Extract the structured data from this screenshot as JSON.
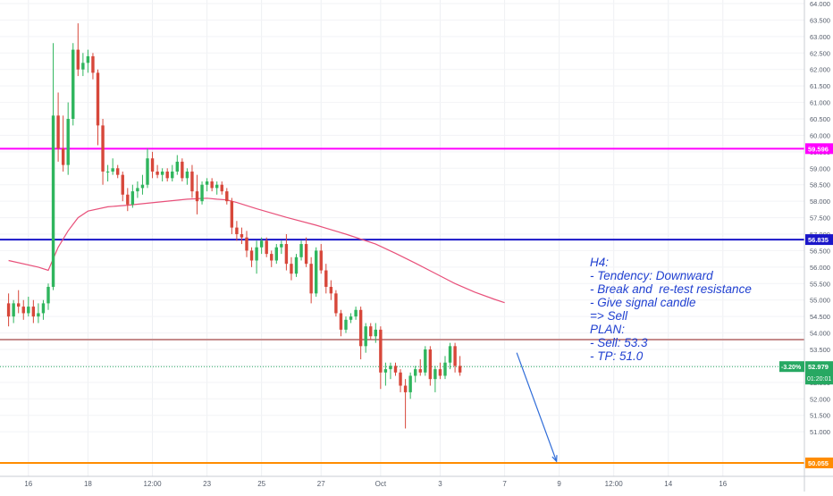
{
  "chart_data": {
    "type": "candlestick",
    "y_range": [
      50.0,
      64.0
    ],
    "y_tick_labels": [
      "51.000",
      "51.500",
      "52.000",
      "52.500",
      "53.000",
      "53.500",
      "54.000",
      "54.500",
      "55.000",
      "55.500",
      "56.000",
      "56.500",
      "57.000",
      "57.500",
      "58.000",
      "58.500",
      "59.000",
      "59.500",
      "60.000",
      "60.500",
      "61.000",
      "61.500",
      "62.000",
      "62.500",
      "63.000",
      "63.500",
      "64.000"
    ],
    "x_tick_labels": [
      {
        "label": "16",
        "index": 4
      },
      {
        "label": "18",
        "index": 16
      },
      {
        "label": "12:00",
        "index": 29
      },
      {
        "label": "23",
        "index": 40
      },
      {
        "label": "25",
        "index": 51
      },
      {
        "label": "27",
        "index": 63
      },
      {
        "label": "Oct",
        "index": 75
      },
      {
        "label": "3",
        "index": 87
      },
      {
        "label": "7",
        "index": 100
      },
      {
        "label": "9",
        "index": 111
      },
      {
        "label": "12:00",
        "index": 122
      },
      {
        "label": "14",
        "index": 133
      },
      {
        "label": "16",
        "index": 144
      }
    ],
    "candles": [
      [
        54.9,
        55.2,
        54.2,
        54.5
      ],
      [
        54.5,
        55.0,
        54.3,
        54.9
      ],
      [
        54.9,
        55.3,
        54.6,
        54.8
      ],
      [
        54.8,
        55.0,
        54.4,
        54.6
      ],
      [
        54.6,
        55.1,
        54.5,
        54.8
      ],
      [
        54.8,
        55.0,
        54.3,
        54.5
      ],
      [
        54.5,
        54.9,
        54.3,
        54.6
      ],
      [
        54.6,
        55.0,
        54.4,
        54.9
      ],
      [
        54.9,
        55.5,
        54.7,
        55.4
      ],
      [
        55.4,
        62.8,
        55.3,
        60.6
      ],
      [
        60.6,
        61.3,
        59.2,
        59.6
      ],
      [
        59.6,
        60.6,
        58.9,
        59.1
      ],
      [
        59.1,
        61.0,
        58.8,
        60.5
      ],
      [
        60.5,
        62.8,
        60.3,
        62.6
      ],
      [
        62.6,
        63.4,
        61.8,
        62.0
      ],
      [
        62.0,
        62.5,
        61.8,
        62.2
      ],
      [
        62.2,
        62.6,
        61.9,
        62.4
      ],
      [
        62.4,
        62.5,
        61.7,
        61.9
      ],
      [
        61.9,
        62.0,
        59.7,
        60.3
      ],
      [
        60.3,
        60.5,
        58.5,
        58.9
      ],
      [
        58.9,
        59.1,
        58.6,
        58.9
      ],
      [
        58.9,
        59.3,
        58.8,
        59.0
      ],
      [
        59.0,
        59.1,
        58.7,
        58.8
      ],
      [
        58.8,
        58.9,
        58.0,
        58.2
      ],
      [
        58.2,
        58.4,
        57.7,
        57.9
      ],
      [
        57.9,
        58.5,
        57.8,
        58.3
      ],
      [
        58.3,
        58.6,
        58.1,
        58.4
      ],
      [
        58.4,
        58.8,
        58.2,
        58.5
      ],
      [
        58.5,
        59.6,
        58.4,
        59.3
      ],
      [
        59.3,
        59.5,
        58.7,
        58.9
      ],
      [
        58.9,
        59.1,
        58.7,
        58.8
      ],
      [
        58.8,
        59.0,
        58.6,
        58.9
      ],
      [
        58.9,
        59.0,
        58.6,
        58.7
      ],
      [
        58.7,
        59.1,
        58.6,
        58.9
      ],
      [
        58.9,
        59.4,
        58.8,
        59.2
      ],
      [
        59.2,
        59.3,
        58.6,
        58.7
      ],
      [
        58.7,
        59.0,
        58.5,
        58.9
      ],
      [
        58.9,
        59.1,
        58.1,
        58.3
      ],
      [
        58.3,
        58.8,
        57.6,
        58.0
      ],
      [
        58.0,
        58.6,
        57.9,
        58.5
      ],
      [
        58.5,
        58.7,
        58.3,
        58.6
      ],
      [
        58.6,
        58.7,
        58.3,
        58.4
      ],
      [
        58.4,
        58.6,
        58.2,
        58.5
      ],
      [
        58.5,
        58.6,
        58.2,
        58.3
      ],
      [
        58.3,
        58.4,
        57.9,
        58.0
      ],
      [
        58.0,
        58.1,
        57.0,
        57.2
      ],
      [
        57.2,
        57.4,
        56.8,
        57.0
      ],
      [
        57.0,
        57.2,
        56.7,
        56.9
      ],
      [
        56.9,
        57.1,
        56.3,
        56.5
      ],
      [
        56.5,
        56.6,
        56.0,
        56.2
      ],
      [
        56.2,
        56.8,
        55.8,
        56.6
      ],
      [
        56.6,
        56.9,
        56.4,
        56.8
      ],
      [
        56.8,
        56.9,
        56.3,
        56.4
      ],
      [
        56.4,
        56.5,
        56.0,
        56.2
      ],
      [
        56.2,
        56.7,
        56.1,
        56.6
      ],
      [
        56.6,
        56.8,
        56.4,
        56.7
      ],
      [
        56.7,
        57.0,
        55.9,
        56.1
      ],
      [
        56.1,
        56.3,
        55.6,
        55.8
      ],
      [
        55.8,
        56.4,
        55.7,
        56.3
      ],
      [
        56.3,
        56.8,
        56.2,
        56.7
      ],
      [
        56.7,
        56.9,
        56.0,
        56.1
      ],
      [
        56.1,
        56.3,
        54.9,
        55.2
      ],
      [
        55.2,
        56.6,
        55.1,
        56.5
      ],
      [
        56.5,
        56.7,
        55.8,
        55.9
      ],
      [
        55.9,
        56.1,
        55.2,
        55.4
      ],
      [
        55.4,
        55.6,
        55.0,
        55.2
      ],
      [
        55.2,
        55.3,
        54.5,
        54.6
      ],
      [
        54.6,
        54.7,
        53.9,
        54.1
      ],
      [
        54.1,
        54.5,
        54.0,
        54.4
      ],
      [
        54.4,
        54.6,
        54.3,
        54.5
      ],
      [
        54.5,
        54.8,
        54.4,
        54.7
      ],
      [
        54.7,
        54.8,
        53.2,
        53.6
      ],
      [
        53.6,
        54.3,
        53.4,
        54.2
      ],
      [
        54.2,
        54.3,
        53.8,
        53.9
      ],
      [
        53.9,
        54.3,
        53.7,
        54.1
      ],
      [
        54.1,
        54.2,
        52.3,
        52.8
      ],
      [
        52.8,
        53.1,
        52.4,
        52.9
      ],
      [
        52.9,
        53.1,
        52.6,
        53.0
      ],
      [
        53.0,
        53.1,
        52.7,
        52.8
      ],
      [
        52.8,
        52.9,
        52.2,
        52.4
      ],
      [
        52.4,
        52.6,
        51.1,
        52.2
      ],
      [
        52.2,
        52.8,
        52.0,
        52.7
      ],
      [
        52.7,
        53.0,
        52.5,
        52.9
      ],
      [
        52.9,
        53.2,
        52.7,
        52.8
      ],
      [
        52.8,
        53.6,
        52.7,
        53.5
      ],
      [
        53.5,
        53.6,
        52.4,
        52.6
      ],
      [
        52.6,
        53.0,
        52.2,
        52.9
      ],
      [
        52.9,
        53.1,
        52.6,
        52.7
      ],
      [
        52.7,
        53.3,
        52.6,
        53.1
      ],
      [
        53.1,
        53.7,
        52.9,
        53.6
      ],
      [
        53.6,
        53.7,
        52.8,
        53.0
      ],
      [
        53.0,
        53.3,
        52.7,
        52.8
      ]
    ],
    "ma_series": {
      "period": "MA",
      "points": [
        [
          0,
          56.2
        ],
        [
          6,
          56.0
        ],
        [
          8,
          55.9
        ],
        [
          10,
          56.6
        ],
        [
          12,
          57.1
        ],
        [
          14,
          57.5
        ],
        [
          16,
          57.7
        ],
        [
          20,
          57.83
        ],
        [
          24,
          57.88
        ],
        [
          28,
          57.94
        ],
        [
          32,
          58.0
        ],
        [
          36,
          58.06
        ],
        [
          40,
          58.09
        ],
        [
          42,
          58.06
        ],
        [
          44,
          58.04
        ],
        [
          46,
          57.96
        ],
        [
          50,
          57.77
        ],
        [
          56,
          57.51
        ],
        [
          62,
          57.27
        ],
        [
          68,
          57.0
        ],
        [
          74,
          56.7
        ],
        [
          78,
          56.42
        ],
        [
          82,
          56.12
        ],
        [
          86,
          55.81
        ],
        [
          90,
          55.5
        ],
        [
          94,
          55.24
        ],
        [
          98,
          55.02
        ],
        [
          100,
          54.92
        ]
      ]
    },
    "horizontal_levels": [
      {
        "price": 59.596,
        "label": "59.596",
        "color": "#ff00ff"
      },
      {
        "price": 56.835,
        "label": "56.835",
        "color": "#1a16c9"
      },
      {
        "price": 53.8,
        "label": "",
        "color": "#c58b8b"
      },
      {
        "price": 50.055,
        "label": "50.055",
        "color": "#ff8c00"
      }
    ],
    "current_price": {
      "price": 52.979,
      "label": "52.979",
      "change_label": "-3.20%",
      "countdown": "01:20:01",
      "color": "#27a862"
    },
    "arrow": {
      "from": [
        101,
        53.4
      ],
      "to": [
        111,
        50.05
      ],
      "color": "#2f6cd8"
    },
    "colors": {
      "up": "#2fb55d",
      "down": "#d7473a",
      "ma": "#e8507a"
    }
  },
  "annotation": {
    "lines": [
      "H4:",
      "- Tendency: Downward",
      "- Break and  re-test resistance",
      "- Give signal candle",
      "=> Sell",
      "PLAN:",
      "- Sell: 53.3",
      "- TP: 51.0"
    ],
    "color": "#1f3fd0"
  }
}
